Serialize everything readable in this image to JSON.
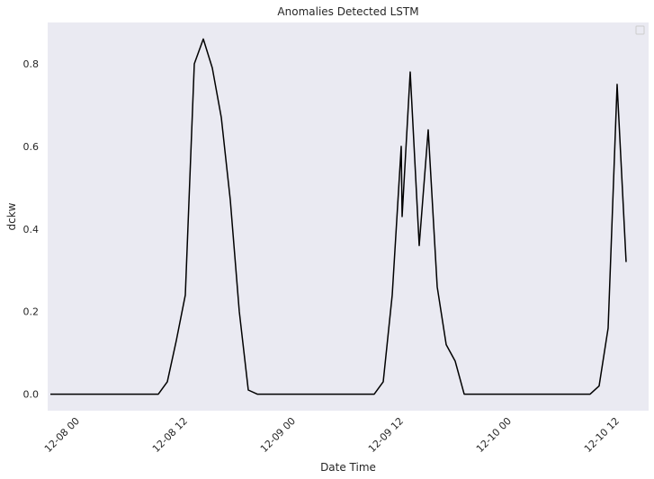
{
  "chart_data": {
    "type": "line",
    "title": "Anomalies Detected LSTM",
    "xlabel": "Date Time",
    "ylabel": "dckw",
    "x_unit": "hours since 12-08 00",
    "xlim": [
      -3.3,
      63.5
    ],
    "ylim": [
      -0.04,
      0.9
    ],
    "grid": false,
    "legend": "top-right",
    "colors": {
      "plot_background": "#eaeaf2",
      "line": "#000000"
    },
    "x_ticks": [
      {
        "value": 0,
        "label": "12-08 00"
      },
      {
        "value": 12,
        "label": "12-08 12"
      },
      {
        "value": 24,
        "label": "12-09 00"
      },
      {
        "value": 36,
        "label": "12-09 12"
      },
      {
        "value": 48,
        "label": "12-10 00"
      },
      {
        "value": 60,
        "label": "12-10 12"
      }
    ],
    "y_ticks": [
      {
        "value": 0.0,
        "label": "0.0"
      },
      {
        "value": 0.2,
        "label": "0.2"
      },
      {
        "value": 0.4,
        "label": "0.4"
      },
      {
        "value": 0.6,
        "label": "0.6"
      },
      {
        "value": 0.8,
        "label": "0.8"
      }
    ],
    "series": [
      {
        "points": [
          {
            "x": -3.0,
            "y": 0.0
          },
          {
            "x": 9.0,
            "y": 0.0
          },
          {
            "x": 10.0,
            "y": 0.03
          },
          {
            "x": 11.0,
            "y": 0.13
          },
          {
            "x": 12.0,
            "y": 0.24
          },
          {
            "x": 13.0,
            "y": 0.8
          },
          {
            "x": 14.0,
            "y": 0.86
          },
          {
            "x": 15.0,
            "y": 0.79
          },
          {
            "x": 16.0,
            "y": 0.67
          },
          {
            "x": 17.0,
            "y": 0.47
          },
          {
            "x": 18.0,
            "y": 0.2
          },
          {
            "x": 19.0,
            "y": 0.01
          },
          {
            "x": 20.0,
            "y": 0.0
          },
          {
            "x": 33.0,
            "y": 0.0
          },
          {
            "x": 34.0,
            "y": 0.03
          },
          {
            "x": 35.0,
            "y": 0.24
          },
          {
            "x": 36.0,
            "y": 0.6
          },
          {
            "x": 36.1,
            "y": 0.43
          },
          {
            "x": 37.0,
            "y": 0.78
          },
          {
            "x": 38.0,
            "y": 0.36
          },
          {
            "x": 39.0,
            "y": 0.64
          },
          {
            "x": 40.0,
            "y": 0.26
          },
          {
            "x": 41.0,
            "y": 0.12
          },
          {
            "x": 42.0,
            "y": 0.08
          },
          {
            "x": 43.0,
            "y": 0.0
          },
          {
            "x": 44.0,
            "y": 0.0
          },
          {
            "x": 57.0,
            "y": 0.0
          },
          {
            "x": 58.0,
            "y": 0.02
          },
          {
            "x": 59.0,
            "y": 0.16
          },
          {
            "x": 60.0,
            "y": 0.75
          },
          {
            "x": 61.0,
            "y": 0.32
          }
        ]
      }
    ]
  }
}
